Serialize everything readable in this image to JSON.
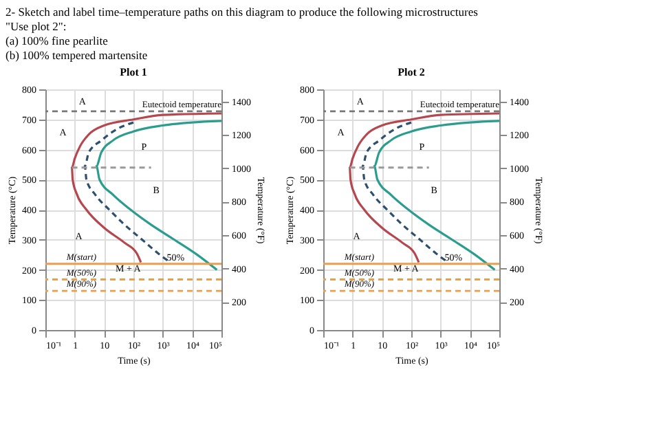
{
  "chart_data": [
    {
      "type": "other",
      "annotations": [
        "2- Sketch and label time–temperature paths on this diagram to produce the following microstructures",
        "\"Use plot 2\":",
        "(a) 100% fine pearlite",
        "(b) 100% tempered martensite"
      ]
    },
    {
      "type": "line",
      "title": "Plot 1",
      "xlabel": "Time (s)",
      "ylabel": "Temperature (°C)",
      "y2label": "Temperature (°F)",
      "log": "x",
      "grid": true,
      "annotations": [
        "A",
        "A",
        "P",
        "B",
        "A",
        "M + A",
        "50%"
      ],
      "xlim": [
        0.1,
        100000
      ],
      "xticks": [
        {
          "value": 0.1,
          "label": "10⁻¹"
        },
        1,
        10,
        {
          "value": 100,
          "label": "10²"
        },
        {
          "value": 1000,
          "label": "10³"
        },
        {
          "value": 10000,
          "label": "10⁴"
        },
        {
          "value": 100000,
          "label": "10⁵"
        }
      ],
      "ylim": [
        0,
        800
      ],
      "yticks": [
        0,
        100,
        200,
        300,
        400,
        500,
        600,
        700,
        800
      ],
      "y2lim": [
        32,
        1472
      ],
      "y2ticks": [
        200,
        400,
        600,
        800,
        1000,
        1200,
        1400
      ],
      "series": [
        {
          "color": "#b5474f",
          "line_style": "solid",
          "x": [
            100000,
            1000,
            100,
            10,
            3,
            1.5,
            1,
            0.8,
            0.85,
            1.2,
            2.5,
            10,
            50,
            130,
            180
          ],
          "values": [
            720,
            715,
            700,
            680,
            650,
            610,
            570,
            540,
            500,
            450,
            400,
            340,
            290,
            255,
            225
          ]
        },
        {
          "color": "#2f4f6f",
          "line_style": "dashed",
          "x": [
            100,
            30,
            8,
            3,
            2.2,
            2.5,
            5,
            15,
            50,
            200,
            800,
            1800
          ],
          "values": [
            690,
            670,
            630,
            590,
            545,
            500,
            450,
            400,
            350,
            300,
            250,
            225
          ]
        },
        {
          "color": "#2a9d8f",
          "line_style": "solid",
          "x": [
            100000,
            10000,
            1000,
            100,
            20,
            8,
            5.5,
            7,
            20,
            80,
            400,
            2500,
            15000,
            70000
          ],
          "values": [
            695,
            690,
            680,
            660,
            630,
            590,
            545,
            500,
            450,
            400,
            350,
            300,
            250,
            200
          ]
        },
        {
          "color": "#999999",
          "line_style": "dashed",
          "x": [
            0.8,
            400
          ],
          "values": [
            540,
            540
          ]
        }
      ],
      "ref_lines": [
        {
          "axis": "y",
          "value": 727,
          "label": "Eutectoid temperature",
          "color": "#777777",
          "line_style": "dashed"
        },
        {
          "axis": "y",
          "value": 220,
          "label": "M(start)",
          "color": "#e8a050",
          "line_style": "solid"
        },
        {
          "axis": "y",
          "value": 168,
          "label": "M(50%)",
          "color": "#e8a050",
          "line_style": "dashed"
        },
        {
          "axis": "y",
          "value": 130,
          "label": "M(90%)",
          "color": "#e8a050",
          "line_style": "dashed"
        }
      ]
    },
    {
      "type": "line",
      "title": "Plot 2",
      "xlabel": "Time (s)",
      "ylabel": "Temperature (°C)",
      "y2label": "Temperature (°F)",
      "log": "x",
      "grid": true,
      "annotations": [
        "A",
        "A",
        "P",
        "B",
        "A",
        "M + A",
        "50%"
      ],
      "xlim": [
        0.1,
        100000
      ],
      "xticks": [
        {
          "value": 0.1,
          "label": "10⁻¹"
        },
        1,
        10,
        {
          "value": 100,
          "label": "10²"
        },
        {
          "value": 1000,
          "label": "10³"
        },
        {
          "value": 10000,
          "label": "10⁴"
        },
        {
          "value": 100000,
          "label": "10⁵"
        }
      ],
      "ylim": [
        0,
        800
      ],
      "yticks": [
        0,
        100,
        200,
        300,
        400,
        500,
        600,
        700,
        800
      ],
      "y2lim": [
        32,
        1472
      ],
      "y2ticks": [
        200,
        400,
        600,
        800,
        1000,
        1200,
        1400
      ],
      "series": [
        {
          "color": "#b5474f",
          "line_style": "solid",
          "x": [
            100000,
            1000,
            100,
            10,
            3,
            1.5,
            1,
            0.8,
            0.85,
            1.2,
            2.5,
            10,
            50,
            130,
            180
          ],
          "values": [
            720,
            715,
            700,
            680,
            650,
            610,
            570,
            540,
            500,
            450,
            400,
            340,
            290,
            255,
            225
          ]
        },
        {
          "color": "#2f4f6f",
          "line_style": "dashed",
          "x": [
            100,
            30,
            8,
            3,
            2.2,
            2.5,
            5,
            15,
            50,
            200,
            800,
            1800
          ],
          "values": [
            690,
            670,
            630,
            590,
            545,
            500,
            450,
            400,
            350,
            300,
            250,
            225
          ]
        },
        {
          "color": "#2a9d8f",
          "line_style": "solid",
          "x": [
            100000,
            10000,
            1000,
            100,
            20,
            8,
            5.5,
            7,
            20,
            80,
            400,
            2500,
            15000,
            70000
          ],
          "values": [
            695,
            690,
            680,
            660,
            630,
            590,
            545,
            500,
            450,
            400,
            350,
            300,
            250,
            200
          ]
        },
        {
          "color": "#999999",
          "line_style": "dashed",
          "x": [
            0.8,
            400
          ],
          "values": [
            540,
            540
          ]
        }
      ],
      "ref_lines": [
        {
          "axis": "y",
          "value": 727,
          "label": "Eutectoid temperature",
          "color": "#777777",
          "line_style": "dashed"
        },
        {
          "axis": "y",
          "value": 220,
          "label": "M(start)",
          "color": "#e8a050",
          "line_style": "solid"
        },
        {
          "axis": "y",
          "value": 168,
          "label": "M(50%)",
          "color": "#e8a050",
          "line_style": "dashed"
        },
        {
          "axis": "y",
          "value": 130,
          "label": "M(90%)",
          "color": "#e8a050",
          "line_style": "dashed"
        }
      ]
    }
  ]
}
